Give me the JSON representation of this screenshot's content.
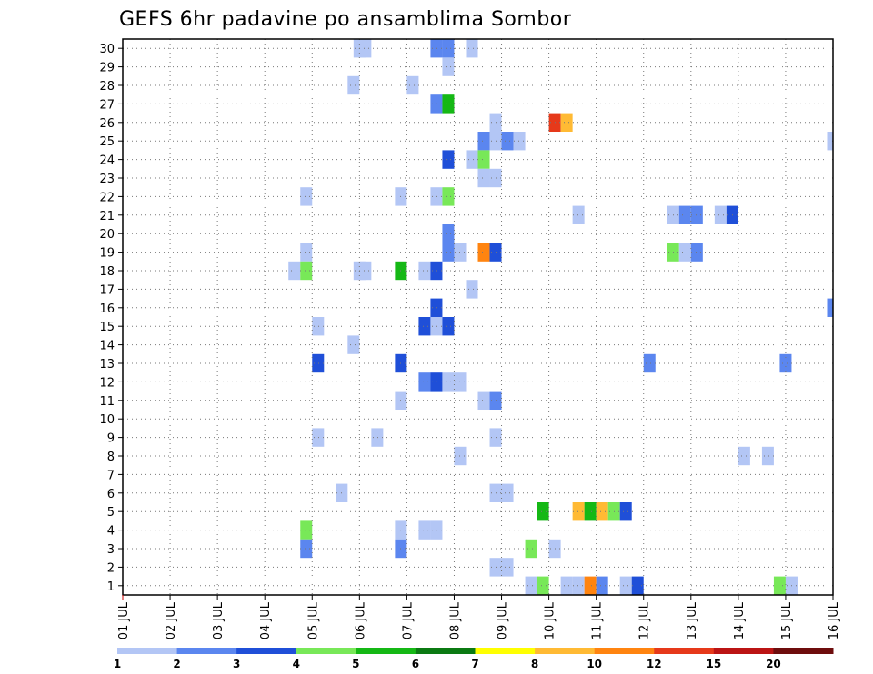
{
  "chart_data": {
    "type": "heatmap",
    "title": "GEFS 6hr padavine po ansamblima Sombor",
    "x_tick_labels": [
      "01 JUL",
      "02 JUL",
      "03 JUL",
      "04 JUL",
      "05 JUL",
      "06 JUL",
      "07 JUL",
      "08 JUL",
      "09 JUL",
      "10 JUL",
      "11 JUL",
      "12 JUL",
      "13 JUL",
      "14 JUL",
      "15 JUL",
      "16 JUL"
    ],
    "x_range_days": [
      1,
      16
    ],
    "y_tick_labels": [
      "1",
      "2",
      "3",
      "4",
      "5",
      "6",
      "7",
      "8",
      "9",
      "10",
      "11",
      "12",
      "13",
      "14",
      "15",
      "16",
      "17",
      "18",
      "19",
      "20",
      "21",
      "22",
      "23",
      "24",
      "25",
      "26",
      "27",
      "28",
      "29",
      "30"
    ],
    "y_range": [
      0,
      30
    ],
    "grid": true,
    "colorbar": {
      "labels": [
        "1",
        "2",
        "3",
        "4",
        "5",
        "6",
        "7",
        "8",
        "10",
        "12",
        "15",
        "20"
      ],
      "colors": [
        "#b3c6f5",
        "#5b86ef",
        "#1f4fd8",
        "#78e858",
        "#15b815",
        "#0b7a12",
        "#ffff00",
        "#ffba34",
        "#ff8410",
        "#e6391a",
        "#bb1414",
        "#6e0d0d"
      ]
    },
    "cells": [
      {
        "member": 30,
        "x": 6.0,
        "c": 0
      },
      {
        "member": 30,
        "x": 6.125,
        "c": 0
      },
      {
        "member": 30,
        "x": 7.625,
        "c": 1
      },
      {
        "member": 30,
        "x": 7.875,
        "c": 1
      },
      {
        "member": 30,
        "x": 8.375,
        "c": 0
      },
      {
        "member": 29,
        "x": 7.875,
        "c": 0
      },
      {
        "member": 28,
        "x": 5.875,
        "c": 0
      },
      {
        "member": 28,
        "x": 7.125,
        "c": 0
      },
      {
        "member": 27,
        "x": 7.625,
        "c": 1
      },
      {
        "member": 27,
        "x": 7.875,
        "c": 4
      },
      {
        "member": 26,
        "x": 10.125,
        "c": 9
      },
      {
        "member": 26,
        "x": 10.375,
        "c": 7
      },
      {
        "member": 26,
        "x": 8.875,
        "c": 0
      },
      {
        "member": 25,
        "x": 8.625,
        "c": 1
      },
      {
        "member": 25,
        "x": 8.875,
        "c": 0
      },
      {
        "member": 25,
        "x": 9.125,
        "c": 1
      },
      {
        "member": 25,
        "x": 9.375,
        "c": 0
      },
      {
        "member": 25,
        "x": 16.0,
        "c": 0
      },
      {
        "member": 24,
        "x": 7.875,
        "c": 2
      },
      {
        "member": 24,
        "x": 8.375,
        "c": 0
      },
      {
        "member": 24,
        "x": 8.625,
        "c": 3
      },
      {
        "member": 23,
        "x": 8.625,
        "c": 0
      },
      {
        "member": 23,
        "x": 8.875,
        "c": 0
      },
      {
        "member": 22,
        "x": 4.875,
        "c": 0
      },
      {
        "member": 22,
        "x": 6.875,
        "c": 0
      },
      {
        "member": 22,
        "x": 7.625,
        "c": 0
      },
      {
        "member": 22,
        "x": 7.875,
        "c": 3
      },
      {
        "member": 21,
        "x": 10.625,
        "c": 0
      },
      {
        "member": 21,
        "x": 12.625,
        "c": 0
      },
      {
        "member": 21,
        "x": 12.875,
        "c": 1
      },
      {
        "member": 21,
        "x": 13.125,
        "c": 1
      },
      {
        "member": 21,
        "x": 13.625,
        "c": 0
      },
      {
        "member": 21,
        "x": 13.875,
        "c": 2
      },
      {
        "member": 20,
        "x": 7.875,
        "c": 1
      },
      {
        "member": 19,
        "x": 4.875,
        "c": 0
      },
      {
        "member": 19,
        "x": 7.875,
        "c": 1
      },
      {
        "member": 19,
        "x": 8.125,
        "c": 0
      },
      {
        "member": 19,
        "x": 8.625,
        "c": 8
      },
      {
        "member": 19,
        "x": 8.875,
        "c": 2
      },
      {
        "member": 19,
        "x": 12.625,
        "c": 3
      },
      {
        "member": 19,
        "x": 12.875,
        "c": 0
      },
      {
        "member": 19,
        "x": 13.125,
        "c": 1
      },
      {
        "member": 18,
        "x": 4.625,
        "c": 0
      },
      {
        "member": 18,
        "x": 4.875,
        "c": 3
      },
      {
        "member": 18,
        "x": 6.0,
        "c": 0
      },
      {
        "member": 18,
        "x": 6.125,
        "c": 0
      },
      {
        "member": 18,
        "x": 6.875,
        "c": 4
      },
      {
        "member": 18,
        "x": 7.375,
        "c": 0
      },
      {
        "member": 18,
        "x": 7.625,
        "c": 2
      },
      {
        "member": 17,
        "x": 8.375,
        "c": 0
      },
      {
        "member": 16,
        "x": 7.625,
        "c": 2
      },
      {
        "member": 16,
        "x": 16.0,
        "c": 1
      },
      {
        "member": 15,
        "x": 5.125,
        "c": 0
      },
      {
        "member": 15,
        "x": 7.375,
        "c": 2
      },
      {
        "member": 15,
        "x": 7.625,
        "c": 0
      },
      {
        "member": 15,
        "x": 7.875,
        "c": 2
      },
      {
        "member": 14,
        "x": 5.875,
        "c": 0
      },
      {
        "member": 13,
        "x": 5.125,
        "c": 2
      },
      {
        "member": 13,
        "x": 6.875,
        "c": 2
      },
      {
        "member": 13,
        "x": 12.125,
        "c": 1
      },
      {
        "member": 13,
        "x": 15.0,
        "c": 1
      },
      {
        "member": 12,
        "x": 7.375,
        "c": 1
      },
      {
        "member": 12,
        "x": 7.625,
        "c": 2
      },
      {
        "member": 12,
        "x": 7.875,
        "c": 0
      },
      {
        "member": 12,
        "x": 8.125,
        "c": 0
      },
      {
        "member": 11,
        "x": 6.875,
        "c": 0
      },
      {
        "member": 11,
        "x": 8.625,
        "c": 0
      },
      {
        "member": 11,
        "x": 8.875,
        "c": 1
      },
      {
        "member": 9,
        "x": 5.125,
        "c": 0
      },
      {
        "member": 9,
        "x": 6.375,
        "c": 0
      },
      {
        "member": 9,
        "x": 8.875,
        "c": 0
      },
      {
        "member": 8,
        "x": 8.125,
        "c": 0
      },
      {
        "member": 8,
        "x": 14.125,
        "c": 0
      },
      {
        "member": 8,
        "x": 14.625,
        "c": 0
      },
      {
        "member": 6,
        "x": 5.625,
        "c": 0
      },
      {
        "member": 6,
        "x": 8.875,
        "c": 0
      },
      {
        "member": 6,
        "x": 9.125,
        "c": 0
      },
      {
        "member": 5,
        "x": 9.875,
        "c": 4
      },
      {
        "member": 5,
        "x": 10.625,
        "c": 7
      },
      {
        "member": 5,
        "x": 10.875,
        "c": 4
      },
      {
        "member": 5,
        "x": 11.125,
        "c": 7
      },
      {
        "member": 5,
        "x": 11.375,
        "c": 3
      },
      {
        "member": 5,
        "x": 11.625,
        "c": 2
      },
      {
        "member": 4,
        "x": 4.875,
        "c": 3
      },
      {
        "member": 4,
        "x": 6.875,
        "c": 0
      },
      {
        "member": 4,
        "x": 7.375,
        "c": 0
      },
      {
        "member": 4,
        "x": 7.625,
        "c": 0
      },
      {
        "member": 3,
        "x": 4.875,
        "c": 1
      },
      {
        "member": 3,
        "x": 6.875,
        "c": 1
      },
      {
        "member": 3,
        "x": 9.625,
        "c": 3
      },
      {
        "member": 3,
        "x": 10.125,
        "c": 0
      },
      {
        "member": 2,
        "x": 8.875,
        "c": 0
      },
      {
        "member": 2,
        "x": 9.125,
        "c": 0
      },
      {
        "member": 1,
        "x": 9.625,
        "c": 0
      },
      {
        "member": 1,
        "x": 9.875,
        "c": 3
      },
      {
        "member": 1,
        "x": 10.375,
        "c": 0
      },
      {
        "member": 1,
        "x": 10.625,
        "c": 0
      },
      {
        "member": 1,
        "x": 10.875,
        "c": 8
      },
      {
        "member": 1,
        "x": 11.125,
        "c": 1
      },
      {
        "member": 1,
        "x": 11.625,
        "c": 0
      },
      {
        "member": 1,
        "x": 11.875,
        "c": 2
      },
      {
        "member": 1,
        "x": 14.875,
        "c": 3
      },
      {
        "member": 1,
        "x": 15.125,
        "c": 0
      }
    ]
  }
}
